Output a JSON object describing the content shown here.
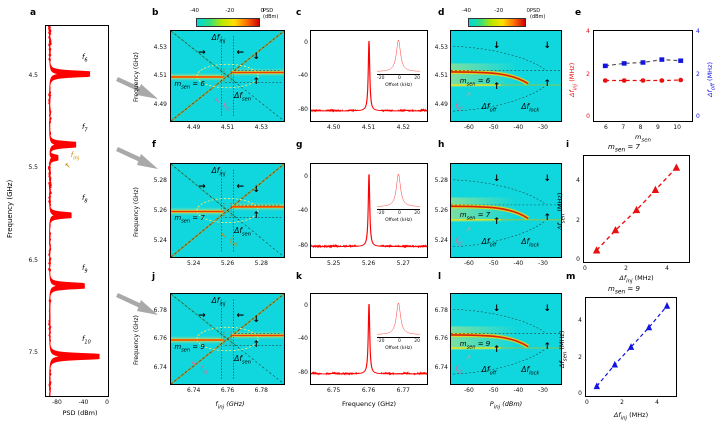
{
  "letters": {
    "a": "a",
    "b": "b",
    "c": "c",
    "d": "d",
    "e": "e",
    "f": "f",
    "g": "g",
    "h": "h",
    "i": "i",
    "j": "j",
    "k": "k",
    "l": "l",
    "m": "m"
  },
  "icons": {
    "down": "↓",
    "up": "↑",
    "right": "→",
    "left": "←",
    "up_left": "↖",
    "up_right": "↗"
  },
  "colors": {
    "trace": "#ff0000",
    "heat_bg": "#0fd7dd",
    "pink": "#f0609a",
    "orange": "#cc8a00",
    "blue": "#1414e0",
    "red": "#e81010",
    "gray_arrow": "#a9a9a9"
  },
  "units": {
    "mhz": " (MHz)",
    "ghz": " (GHz)",
    "dbm": " (dBm)"
  },
  "labels": {
    "freq_ghz": "Frequency (GHz)",
    "psd_dbm": "PSD (dBm)"
  },
  "colorbar": {
    "ticks": [
      "-40",
      "-20",
      "0"
    ],
    "label1": "PSD",
    "label2": "(dBm)"
  },
  "ann": {
    "dfinj": {
      "main": "Δf",
      "sub": "inj"
    },
    "dfsen": {
      "main": "Δf",
      "sub": "sen"
    },
    "dfoff": {
      "main": "Δf",
      "sub": "off"
    },
    "dflock": {
      "main": "Δf",
      "sub": "lock"
    },
    "fid": {
      "main": "f",
      "sub": "id"
    },
    "finj": {
      "main": "f",
      "sub": "inj"
    },
    "msen": {
      "main": "m",
      "sub": "sen"
    },
    "pinj": {
      "main": "P",
      "sub": "inj"
    }
  },
  "panel_a": {
    "yticks": [
      "4.5",
      "5.5",
      "6.5",
      "7.5"
    ],
    "xticks": [
      "-80",
      "-40",
      "0"
    ],
    "peak_labels": [
      {
        "main": "f",
        "sub": "6"
      },
      {
        "main": "f",
        "sub": "7"
      },
      {
        "main": "f",
        "sub": "8"
      },
      {
        "main": "f",
        "sub": "9"
      },
      {
        "main": "f",
        "sub": "10"
      }
    ]
  },
  "rows": [
    {
      "msen_eq": " = 6",
      "b": {
        "yticks": [
          "4.53",
          "4.51",
          "4.49"
        ],
        "xticks": [
          "4.49",
          "4.51",
          "4.53"
        ]
      },
      "c": {
        "yticks": [
          "0",
          "-40",
          "-80"
        ],
        "xticks": [
          "4.50",
          "4.51",
          "4.52"
        ],
        "inset_ticks": [
          "-20",
          "0",
          "20"
        ],
        "inset_label": "Offset (kHz)"
      },
      "d": {
        "yticks": [
          "4.53",
          "4.51",
          "4.49"
        ],
        "xticks": [
          "-60",
          "-50",
          "-40",
          "-30"
        ]
      }
    },
    {
      "msen_eq": " = 7",
      "b": {
        "yticks": [
          "5.28",
          "5.26",
          "5.24"
        ],
        "xticks": [
          "5.24",
          "5.26",
          "5.28"
        ]
      },
      "c": {
        "yticks": [
          "0",
          "-40",
          "-80"
        ],
        "xticks": [
          "5.25",
          "5.26",
          "5.27"
        ],
        "inset_ticks": [
          "-20",
          "0",
          "20"
        ],
        "inset_label": "Offset (kHz)"
      },
      "d": {
        "yticks": [
          "5.28",
          "5.26",
          "5.24"
        ],
        "xticks": [
          "-60",
          "-50",
          "-40",
          "-30"
        ]
      }
    },
    {
      "msen_eq": " = 9",
      "b": {
        "yticks": [
          "6.78",
          "6.76",
          "6.74"
        ],
        "xticks": [
          "6.74",
          "6.76",
          "6.78"
        ]
      },
      "c": {
        "yticks": [
          "0",
          "-40",
          "-80"
        ],
        "xticks": [
          "6.75",
          "6.76",
          "6.77"
        ],
        "inset_ticks": [
          "-20",
          "0",
          "20"
        ],
        "inset_label": "Offset (kHz)"
      },
      "d": {
        "yticks": [
          "6.78",
          "6.76",
          "6.74"
        ],
        "xticks": [
          "-60",
          "-50",
          "-40",
          "-30"
        ]
      }
    }
  ],
  "chart_data": [
    {
      "id": "panel_a_spectrum",
      "type": "line",
      "orient": "v",
      "p_unit": "GHz",
      "a_unit": "dBm",
      "p_range": [
        4.0,
        7.93
      ],
      "a_range": [
        -90,
        0
      ],
      "base": -85,
      "w": 0.013,
      "samples": 750,
      "stroke": 1.4,
      "seed": 3,
      "peaks": [
        {
          "p": 4.51,
          "a": -25
        },
        {
          "p": 5.26,
          "a": -45
        },
        {
          "p": 5.4,
          "a": -72
        },
        {
          "p": 6.01,
          "a": -52
        },
        {
          "p": 6.76,
          "a": -33
        },
        {
          "p": 7.51,
          "a": -12
        }
      ]
    },
    {
      "id": "locked_spectrum_m6",
      "type": "line",
      "orient": "h",
      "p_unit": "GHz",
      "a_unit": "dBm",
      "p_range": [
        4.497,
        4.523
      ],
      "a_range": [
        -95,
        -5
      ],
      "base": -85,
      "w": 0.0002,
      "samples": 900,
      "stroke": 1,
      "seed": 5,
      "peaks": [
        {
          "p": 4.51,
          "a": -15
        }
      ]
    },
    {
      "id": "locked_spectrum_m7",
      "type": "line",
      "orient": "h",
      "p_unit": "GHz",
      "a_unit": "dBm",
      "p_range": [
        5.247,
        5.273
      ],
      "a_range": [
        -95,
        -5
      ],
      "base": -85,
      "w": 0.0002,
      "samples": 900,
      "stroke": 1,
      "seed": 6,
      "peaks": [
        {
          "p": 5.26,
          "a": -15
        }
      ]
    },
    {
      "id": "locked_spectrum_m9",
      "type": "line",
      "orient": "h",
      "p_unit": "GHz",
      "a_unit": "dBm",
      "p_range": [
        6.747,
        6.773
      ],
      "a_range": [
        -95,
        -5
      ],
      "base": -85,
      "w": 0.0002,
      "samples": 900,
      "stroke": 1,
      "seed": 7,
      "peaks": [
        {
          "p": 6.76,
          "a": -15
        }
      ]
    },
    {
      "id": "inset_zoom",
      "type": "line",
      "orient": "h",
      "p_unit": "kHz",
      "a_unit": "a.u.",
      "p_range": [
        -30,
        30
      ],
      "a_range": [
        0,
        1
      ],
      "base": 0.06,
      "w": 3.5,
      "samples": 160,
      "stroke": 1,
      "seed": 9,
      "peaks": [
        {
          "p": 0,
          "a": 0.92
        }
      ]
    },
    {
      "id": "panel_e",
      "type": "scatter",
      "x": [
        6,
        7,
        8,
        9,
        10
      ],
      "xlim": [
        5.4,
        10.6
      ],
      "ylim": [
        0,
        4
      ],
      "xticks": [
        "6",
        "7",
        "8",
        "9",
        "10"
      ],
      "yticks_left": [
        "4",
        "2",
        "0"
      ],
      "yticks_right": [
        "4",
        "2",
        "0"
      ],
      "series": [
        {
          "name": "dfoff",
          "color": "#1414e0",
          "line_color": "#555555",
          "marker": "square",
          "msize": 5,
          "values": [
            2.45,
            2.56,
            2.6,
            2.73,
            2.68
          ]
        },
        {
          "name": "dfinj",
          "color": "#e81010",
          "line_color": "#e81010",
          "marker": "circle",
          "msize": 5,
          "values": [
            1.8,
            1.8,
            1.8,
            1.8,
            1.82
          ]
        }
      ]
    },
    {
      "id": "panel_i",
      "type": "scatter",
      "x": [
        0.6,
        1.5,
        2.5,
        3.4,
        4.4
      ],
      "xlim": [
        0,
        5
      ],
      "ylim": [
        0,
        5
      ],
      "xticks": [
        "0",
        "2",
        "4"
      ],
      "yticks": [
        "4",
        "2",
        "0"
      ],
      "series": [
        {
          "name": "dfsen_m7",
          "color": "#e81010",
          "line_color": "#e81010",
          "marker": "triangle",
          "msize": 6.5,
          "values": [
            0.55,
            1.5,
            2.45,
            3.4,
            4.45
          ]
        }
      ]
    },
    {
      "id": "panel_m",
      "type": "scatter",
      "x": [
        0.6,
        1.6,
        2.5,
        3.5,
        4.5
      ],
      "xlim": [
        0,
        5
      ],
      "ylim": [
        0,
        5
      ],
      "xticks": [
        "0",
        "2",
        "4"
      ],
      "yticks": [
        "4",
        "2",
        "0"
      ],
      "series": [
        {
          "name": "dfsen_m9",
          "color": "#1414e0",
          "line_color": "#1414e0",
          "marker": "triangle",
          "msize": 6.5,
          "values": [
            0.5,
            1.6,
            2.5,
            3.5,
            4.6
          ]
        }
      ]
    }
  ]
}
